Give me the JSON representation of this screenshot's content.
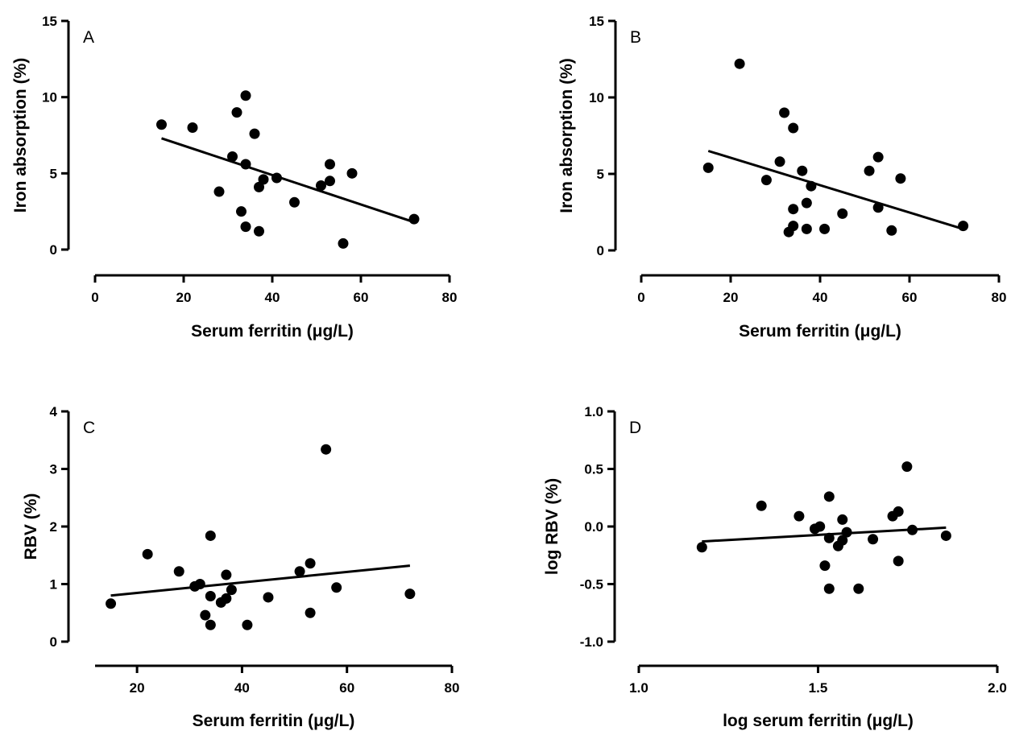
{
  "chart_data": [
    {
      "type": "scatter",
      "panel_label": "A",
      "xlabel": "Serum ferritin (μg/L)",
      "ylabel": "Iron absorption (%)",
      "xlim": [
        0,
        80
      ],
      "ylim": [
        0,
        15
      ],
      "xticks": [
        "0",
        "20",
        "40",
        "60",
        "80"
      ],
      "yticks": [
        "0",
        "5",
        "10",
        "15"
      ],
      "points": [
        {
          "x": 15,
          "y": 8.2
        },
        {
          "x": 22,
          "y": 8.0
        },
        {
          "x": 28,
          "y": 3.8
        },
        {
          "x": 31,
          "y": 6.1
        },
        {
          "x": 32,
          "y": 9.0
        },
        {
          "x": 33,
          "y": 2.5
        },
        {
          "x": 34,
          "y": 10.1
        },
        {
          "x": 34,
          "y": 5.6
        },
        {
          "x": 34,
          "y": 1.5
        },
        {
          "x": 36,
          "y": 7.6
        },
        {
          "x": 37,
          "y": 4.1
        },
        {
          "x": 37,
          "y": 1.2
        },
        {
          "x": 38,
          "y": 4.6
        },
        {
          "x": 41,
          "y": 4.7
        },
        {
          "x": 45,
          "y": 3.1
        },
        {
          "x": 51,
          "y": 4.2
        },
        {
          "x": 53,
          "y": 5.6
        },
        {
          "x": 53,
          "y": 4.5
        },
        {
          "x": 56,
          "y": 0.4
        },
        {
          "x": 58,
          "y": 5.0
        },
        {
          "x": 72,
          "y": 2.0
        }
      ],
      "fit_line": {
        "x": [
          15,
          72
        ],
        "y": [
          7.3,
          1.8
        ]
      }
    },
    {
      "type": "scatter",
      "panel_label": "B",
      "xlabel": "Serum ferritin (μg/L)",
      "ylabel": "Iron absorption (%)",
      "xlim": [
        0,
        80
      ],
      "ylim": [
        0,
        15
      ],
      "xticks": [
        "0",
        "20",
        "40",
        "60",
        "80"
      ],
      "yticks": [
        "0",
        "5",
        "10",
        "15"
      ],
      "points": [
        {
          "x": 15,
          "y": 5.4
        },
        {
          "x": 22,
          "y": 12.2
        },
        {
          "x": 28,
          "y": 4.6
        },
        {
          "x": 31,
          "y": 5.8
        },
        {
          "x": 32,
          "y": 9.0
        },
        {
          "x": 33,
          "y": 1.2
        },
        {
          "x": 34,
          "y": 8.0
        },
        {
          "x": 34,
          "y": 2.7
        },
        {
          "x": 34,
          "y": 1.6
        },
        {
          "x": 36,
          "y": 5.2
        },
        {
          "x": 37,
          "y": 3.1
        },
        {
          "x": 37,
          "y": 1.4
        },
        {
          "x": 38,
          "y": 4.2
        },
        {
          "x": 41,
          "y": 1.4
        },
        {
          "x": 45,
          "y": 2.4
        },
        {
          "x": 51,
          "y": 5.2
        },
        {
          "x": 53,
          "y": 6.1
        },
        {
          "x": 53,
          "y": 2.8
        },
        {
          "x": 56,
          "y": 1.3
        },
        {
          "x": 58,
          "y": 4.7
        },
        {
          "x": 72,
          "y": 1.6
        }
      ],
      "fit_line": {
        "x": [
          15,
          72
        ],
        "y": [
          6.5,
          1.4
        ]
      }
    },
    {
      "type": "scatter",
      "panel_label": "C",
      "xlabel": "Serum ferritin (μg/L)",
      "ylabel": "RBV (%)",
      "xlim": [
        12,
        80
      ],
      "ylim": [
        0,
        4
      ],
      "xticks": [
        "20",
        "40",
        "60",
        "80"
      ],
      "xtick_values": [
        20,
        40,
        60,
        80
      ],
      "yticks": [
        "0",
        "1",
        "2",
        "3",
        "4"
      ],
      "points": [
        {
          "x": 15,
          "y": 0.66
        },
        {
          "x": 22,
          "y": 1.52
        },
        {
          "x": 28,
          "y": 1.22
        },
        {
          "x": 31,
          "y": 0.96
        },
        {
          "x": 32,
          "y": 1.0
        },
        {
          "x": 33,
          "y": 0.46
        },
        {
          "x": 34,
          "y": 1.84
        },
        {
          "x": 34,
          "y": 0.79
        },
        {
          "x": 34,
          "y": 0.29
        },
        {
          "x": 36,
          "y": 0.68
        },
        {
          "x": 37,
          "y": 1.16
        },
        {
          "x": 37,
          "y": 0.75
        },
        {
          "x": 38,
          "y": 0.9
        },
        {
          "x": 41,
          "y": 0.29
        },
        {
          "x": 45,
          "y": 0.77
        },
        {
          "x": 51,
          "y": 1.22
        },
        {
          "x": 53,
          "y": 1.36
        },
        {
          "x": 53,
          "y": 0.5
        },
        {
          "x": 56,
          "y": 3.34
        },
        {
          "x": 58,
          "y": 0.94
        },
        {
          "x": 72,
          "y": 0.83
        }
      ],
      "fit_line": {
        "x": [
          15,
          72
        ],
        "y": [
          0.8,
          1.32
        ]
      }
    },
    {
      "type": "scatter",
      "panel_label": "D",
      "xlabel": "log serum ferritin (μg/L)",
      "ylabel": "log RBV (%)",
      "xlim": [
        1.0,
        2.0
      ],
      "ylim": [
        -1.0,
        1.0
      ],
      "xticks": [
        "1.0",
        "1.5",
        "2.0"
      ],
      "xtick_values": [
        1.0,
        1.5,
        2.0
      ],
      "yticks": [
        "-1.0",
        "-0.5",
        "0.0",
        "0.5",
        "1.0"
      ],
      "ytick_values": [
        -1.0,
        -0.5,
        0.0,
        0.5,
        1.0
      ],
      "points": [
        {
          "x": 1.176,
          "y": -0.18
        },
        {
          "x": 1.342,
          "y": 0.18
        },
        {
          "x": 1.447,
          "y": 0.09
        },
        {
          "x": 1.491,
          "y": -0.02
        },
        {
          "x": 1.505,
          "y": 0.0
        },
        {
          "x": 1.519,
          "y": -0.34
        },
        {
          "x": 1.531,
          "y": 0.26
        },
        {
          "x": 1.531,
          "y": -0.1
        },
        {
          "x": 1.531,
          "y": -0.54
        },
        {
          "x": 1.556,
          "y": -0.17
        },
        {
          "x": 1.568,
          "y": 0.06
        },
        {
          "x": 1.568,
          "y": -0.12
        },
        {
          "x": 1.58,
          "y": -0.05
        },
        {
          "x": 1.613,
          "y": -0.54
        },
        {
          "x": 1.653,
          "y": -0.11
        },
        {
          "x": 1.708,
          "y": 0.09
        },
        {
          "x": 1.724,
          "y": 0.13
        },
        {
          "x": 1.724,
          "y": -0.3
        },
        {
          "x": 1.748,
          "y": 0.52
        },
        {
          "x": 1.763,
          "y": -0.03
        },
        {
          "x": 1.857,
          "y": -0.08
        }
      ],
      "fit_line": {
        "x": [
          1.176,
          1.857
        ],
        "y": [
          -0.13,
          -0.01
        ]
      }
    }
  ]
}
